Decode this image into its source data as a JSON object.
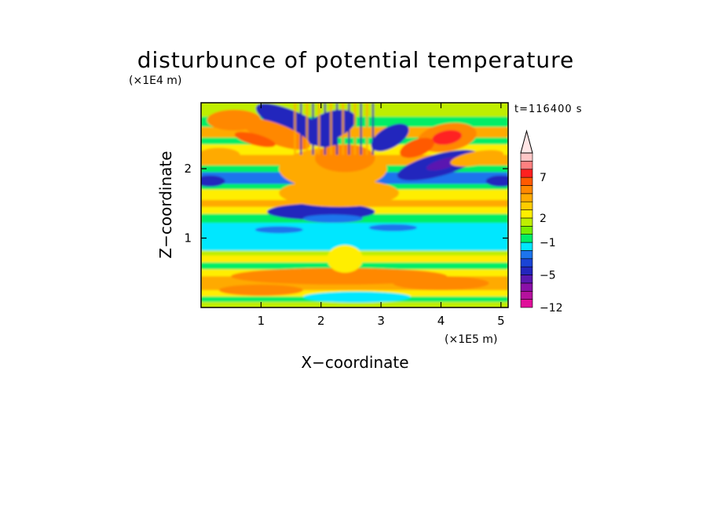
{
  "chart_data": {
    "type": "heatmap",
    "title": "disturbunce of potential temperature",
    "xlabel": "X−coordinate",
    "ylabel": "Z−coordinate",
    "x_unit": "(×1E5 m)",
    "y_unit": "(×1E4 m)",
    "annotation": "t=116400 s",
    "xlim": [
      0,
      5.12
    ],
    "ylim": [
      0,
      2.95
    ],
    "x_ticks": [
      1,
      2,
      3,
      4,
      5
    ],
    "y_ticks": [
      1,
      2
    ],
    "x_tick_labels": [
      "1",
      "2",
      "3",
      "4",
      "5"
    ],
    "y_tick_labels": [
      "1",
      "2"
    ],
    "colorbar": {
      "levels": [
        -12,
        -10,
        -8,
        -6,
        -5,
        -4,
        -3,
        -2,
        -1,
        0,
        1,
        2,
        3,
        4,
        5,
        6,
        7,
        8,
        9
      ],
      "colors": [
        "#e0109a",
        "#b5119e",
        "#8a10a8",
        "#5a18b0",
        "#2326bd",
        "#1a44d6",
        "#1c74ec",
        "#00e7ff",
        "#00ee66",
        "#76ee00",
        "#bfee00",
        "#ffee00",
        "#ffcc00",
        "#ffaa00",
        "#ff8800",
        "#ff5a00",
        "#ff2020",
        "#ff8080",
        "#ffc6c6"
      ],
      "extend_max_color": "#ffe6e6",
      "tick_labels": [
        "−12",
        "−5",
        "−1",
        "2",
        "7"
      ],
      "tick_values": [
        -12,
        -5,
        -1,
        2,
        7
      ]
    }
  }
}
